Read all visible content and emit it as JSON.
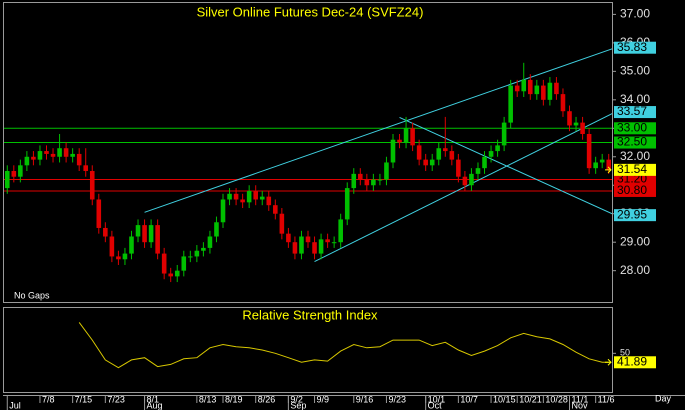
{
  "chart_data": [
    {
      "type": "candlestick",
      "title": "Silver Online Futures Dec-24 (SVFZ24)",
      "annotation": "No Gaps",
      "x_axis_label": "Day",
      "open": [
        30.9,
        31.5,
        31.3,
        31.7,
        32.0,
        31.9,
        32.2,
        32.1,
        32.0,
        32.3,
        32.0,
        32.1,
        31.7,
        31.5,
        30.5,
        29.5,
        29.2,
        28.5,
        28.4,
        28.6,
        29.2,
        29.6,
        29.0,
        29.6,
        28.6,
        27.9,
        27.8,
        28.0,
        28.5,
        28.5,
        28.7,
        28.8,
        29.2,
        29.7,
        30.5,
        30.7,
        30.5,
        30.4,
        30.8,
        30.5,
        30.6,
        30.3,
        30.0,
        29.3,
        29.0,
        28.6,
        29.2,
        29.0,
        28.6,
        29.1,
        29.0,
        29.0,
        29.8,
        30.9,
        31.4,
        31.2,
        31.0,
        31.2,
        31.2,
        31.8,
        32.6,
        32.5,
        33.0,
        32.4,
        31.9,
        31.7,
        31.9,
        32.3,
        32.2,
        31.9,
        31.3,
        31.0,
        31.4,
        31.6,
        32.0,
        32.2,
        32.4,
        33.2,
        34.5,
        34.3,
        34.7,
        34.2,
        34.5,
        34.0,
        34.6,
        34.2,
        33.6,
        33.1,
        33.2,
        32.8,
        31.6,
        31.8,
        31.9
      ],
      "high": [
        31.7,
        31.7,
        31.9,
        32.2,
        32.2,
        32.4,
        32.4,
        32.3,
        32.8,
        32.5,
        32.3,
        32.3,
        32.3,
        31.7,
        30.7,
        29.7,
        29.4,
        28.7,
        28.8,
        29.4,
        29.8,
        29.8,
        29.8,
        29.8,
        28.8,
        28.1,
        28.2,
        28.7,
        28.7,
        28.9,
        29.0,
        29.4,
        29.9,
        30.7,
        30.9,
        30.9,
        30.7,
        31.0,
        31.0,
        30.8,
        30.8,
        30.5,
        30.2,
        29.5,
        29.2,
        29.4,
        29.4,
        29.2,
        29.3,
        29.3,
        29.2,
        30.0,
        31.1,
        31.6,
        31.6,
        31.4,
        31.4,
        31.4,
        32.0,
        32.8,
        32.8,
        33.4,
        33.2,
        32.6,
        32.1,
        32.1,
        32.5,
        33.4,
        32.4,
        32.1,
        31.5,
        31.6,
        31.8,
        32.2,
        32.4,
        32.6,
        33.4,
        34.7,
        34.7,
        35.3,
        34.9,
        34.7,
        34.7,
        34.8,
        34.8,
        34.4,
        33.8,
        33.4,
        33.4,
        33.0,
        32.0,
        32.1,
        32.1
      ],
      "low": [
        30.7,
        31.1,
        31.1,
        31.5,
        31.7,
        31.7,
        31.9,
        31.8,
        31.8,
        31.8,
        31.8,
        31.5,
        31.3,
        30.3,
        29.3,
        29.0,
        28.3,
        28.2,
        28.2,
        28.4,
        29.0,
        28.8,
        28.8,
        28.4,
        27.7,
        27.6,
        27.6,
        27.8,
        28.3,
        28.3,
        28.5,
        28.6,
        29.0,
        29.5,
        30.3,
        30.3,
        30.2,
        30.2,
        30.3,
        30.3,
        30.1,
        29.8,
        29.1,
        28.8,
        28.4,
        28.4,
        28.8,
        28.4,
        28.4,
        28.8,
        28.8,
        28.8,
        29.6,
        30.7,
        31.0,
        30.8,
        30.8,
        31.0,
        31.0,
        31.6,
        32.3,
        32.3,
        32.2,
        31.7,
        31.5,
        31.5,
        31.7,
        32.0,
        31.7,
        31.1,
        30.8,
        30.8,
        31.2,
        31.4,
        31.8,
        32.0,
        32.2,
        33.0,
        34.1,
        34.1,
        34.0,
        34.0,
        33.8,
        33.8,
        34.0,
        33.4,
        32.9,
        32.9,
        32.6,
        31.4,
        31.4,
        31.6,
        31.4
      ],
      "close": [
        31.5,
        31.3,
        31.7,
        32.0,
        31.9,
        32.2,
        32.1,
        32.0,
        32.3,
        32.0,
        32.1,
        31.7,
        31.5,
        30.5,
        29.5,
        29.2,
        28.5,
        28.4,
        28.6,
        29.2,
        29.6,
        29.0,
        29.6,
        28.6,
        27.9,
        27.8,
        28.0,
        28.5,
        28.5,
        28.7,
        28.8,
        29.2,
        29.7,
        30.5,
        30.7,
        30.5,
        30.4,
        30.8,
        30.5,
        30.6,
        30.3,
        30.0,
        29.3,
        29.0,
        28.6,
        29.2,
        29.0,
        28.6,
        29.1,
        29.0,
        29.0,
        29.8,
        30.9,
        31.4,
        31.2,
        31.0,
        31.2,
        31.2,
        31.8,
        32.6,
        32.5,
        33.0,
        32.4,
        31.9,
        31.7,
        31.9,
        32.3,
        32.2,
        31.9,
        31.3,
        31.0,
        31.4,
        31.6,
        32.0,
        32.2,
        32.4,
        33.2,
        34.5,
        34.3,
        34.7,
        34.2,
        34.5,
        34.0,
        34.6,
        34.2,
        33.6,
        33.1,
        33.2,
        32.8,
        31.6,
        31.8,
        31.9,
        31.54
      ],
      "up_color": "#00c000",
      "down_color": "#e00000",
      "ylim": [
        26.9,
        37.4
      ],
      "yticks": [
        {
          "value": 28,
          "label": "28.00"
        },
        {
          "value": 29,
          "label": "29.00"
        },
        {
          "value": 30,
          "label": "30.00"
        },
        {
          "value": 31,
          "label": "31.00"
        },
        {
          "value": 32,
          "label": "32.00"
        },
        {
          "value": 33,
          "label": "33.00"
        },
        {
          "value": 34,
          "label": "34.00"
        },
        {
          "value": 35,
          "label": "35.00"
        },
        {
          "value": 36,
          "label": "36.00"
        },
        {
          "value": 37,
          "label": "37.00"
        }
      ],
      "xticks": [
        {
          "value": 5,
          "label": "7/8"
        },
        {
          "value": 10,
          "label": "7/15"
        },
        {
          "value": 15,
          "label": "7/23"
        },
        {
          "value": 21,
          "label": "8/1"
        },
        {
          "value": 29,
          "label": "8/13"
        },
        {
          "value": 33,
          "label": "8/19"
        },
        {
          "value": 38,
          "label": "8/26"
        },
        {
          "value": 43,
          "label": "9/2"
        },
        {
          "value": 47,
          "label": "9/9"
        },
        {
          "value": 53,
          "label": "9/16"
        },
        {
          "value": 58,
          "label": "9/23"
        },
        {
          "value": 64,
          "label": "10/1"
        },
        {
          "value": 69,
          "label": "10/7"
        },
        {
          "value": 74,
          "label": "10/15"
        },
        {
          "value": 78,
          "label": "10/21"
        },
        {
          "value": 82,
          "label": "10/28"
        },
        {
          "value": 86,
          "label": "11/1"
        },
        {
          "value": 90,
          "label": "11/6"
        }
      ],
      "months": [
        {
          "value": 0,
          "label": "Jul"
        },
        {
          "value": 21,
          "label": "Aug"
        },
        {
          "value": 43,
          "label": "Sep"
        },
        {
          "value": 64,
          "label": "Oct"
        },
        {
          "value": 86,
          "label": "Nov"
        }
      ],
      "trend_lines": [
        {
          "color": "#40d0e0",
          "x": [
            21,
            93
          ],
          "values": [
            30.05,
            35.83
          ]
        },
        {
          "color": "#40d0e0",
          "x": [
            47,
            93
          ],
          "values": [
            28.32,
            33.57
          ]
        },
        {
          "color": "#40d0e0",
          "x": [
            60,
            93
          ],
          "values": [
            33.38,
            29.95
          ]
        }
      ],
      "levels": [
        {
          "value": 33,
          "label": "33.00",
          "color": "#00c000"
        },
        {
          "value": 32.5,
          "label": "32.50",
          "color": "#00c000"
        },
        {
          "value": 31.2,
          "label": "31.20",
          "color": "#e00000"
        },
        {
          "value": 30.8,
          "label": "30.80",
          "color": "#e00000"
        }
      ],
      "price_marker": {
        "value": 31.54,
        "label": "31.54",
        "color": "#ffff00"
      }
    },
    {
      "type": "line",
      "title": "Relative Strength Index",
      "color": "#d8c800",
      "x": [
        11,
        13,
        15,
        17,
        19,
        21,
        23,
        25,
        27,
        29,
        31,
        33,
        35,
        37,
        39,
        41,
        43,
        45,
        47,
        49,
        51,
        53,
        55,
        57,
        59,
        61,
        63,
        65,
        67,
        69,
        71,
        73,
        75,
        77,
        79,
        81,
        83,
        85,
        87,
        89,
        91,
        92
      ],
      "values": [
        78,
        62,
        44,
        37,
        44,
        46,
        38,
        40,
        45,
        46,
        55,
        58,
        56,
        55,
        53,
        50,
        46,
        42,
        44,
        43,
        52,
        58,
        55,
        56,
        62,
        62,
        62,
        57,
        60,
        53,
        48,
        52,
        57,
        64,
        68,
        65,
        63,
        58,
        51,
        45,
        42,
        41.89
      ],
      "ylim": [
        15,
        91
      ],
      "yticks": [
        50
      ],
      "last_color": "#ffff00"
    }
  ]
}
